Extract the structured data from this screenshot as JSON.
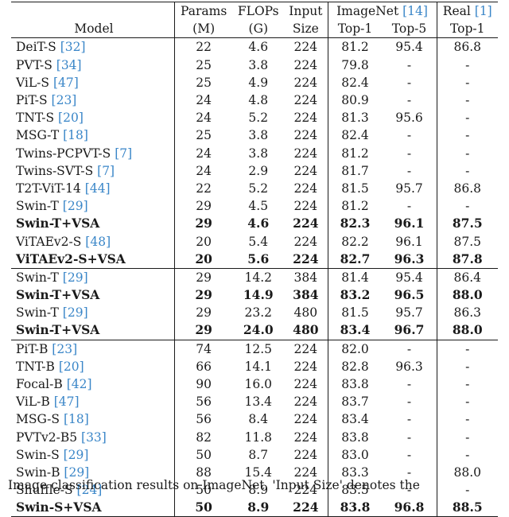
{
  "header": {
    "row1": {
      "model": "",
      "params": "Params",
      "flops": "FLOPs",
      "input": "Input",
      "imagenet_prefix": "ImageNet",
      "imagenet_cite": "[14]",
      "real_prefix": "Real",
      "real_cite": "[1]"
    },
    "row2": {
      "model": "Model",
      "params": "(M)",
      "flops": "(G)",
      "input": "Size",
      "top1": "Top-1",
      "top5": "Top-5",
      "real_top1": "Top-1"
    }
  },
  "groups": [
    {
      "rows": [
        {
          "name": "DeiT-S",
          "cite": "[32]",
          "params": "22",
          "flops": "4.6",
          "size": "224",
          "top1": "81.2",
          "top5": "95.4",
          "real": "86.8",
          "bold": false
        },
        {
          "name": "PVT-S",
          "cite": "[34]",
          "params": "25",
          "flops": "3.8",
          "size": "224",
          "top1": "79.8",
          "top5": "-",
          "real": "-",
          "bold": false
        },
        {
          "name": "ViL-S",
          "cite": "[47]",
          "params": "25",
          "flops": "4.9",
          "size": "224",
          "top1": "82.4",
          "top5": "-",
          "real": "-",
          "bold": false
        },
        {
          "name": "PiT-S",
          "cite": "[23]",
          "params": "24",
          "flops": "4.8",
          "size": "224",
          "top1": "80.9",
          "top5": "-",
          "real": "-",
          "bold": false
        },
        {
          "name": "TNT-S",
          "cite": "[20]",
          "params": "24",
          "flops": "5.2",
          "size": "224",
          "top1": "81.3",
          "top5": "95.6",
          "real": "-",
          "bold": false
        },
        {
          "name": "MSG-T",
          "cite": "[18]",
          "params": "25",
          "flops": "3.8",
          "size": "224",
          "top1": "82.4",
          "top5": "-",
          "real": "-",
          "bold": false
        },
        {
          "name": "Twins-PCPVT-S",
          "cite": "[7]",
          "params": "24",
          "flops": "3.8",
          "size": "224",
          "top1": "81.2",
          "top5": "-",
          "real": "-",
          "bold": false
        },
        {
          "name": "Twins-SVT-S",
          "cite": "[7]",
          "params": "24",
          "flops": "2.9",
          "size": "224",
          "top1": "81.7",
          "top5": "-",
          "real": "-",
          "bold": false
        },
        {
          "name": "T2T-ViT-14",
          "cite": "[44]",
          "params": "22",
          "flops": "5.2",
          "size": "224",
          "top1": "81.5",
          "top5": "95.7",
          "real": "86.8",
          "bold": false
        },
        {
          "name": "Swin-T",
          "cite": "[29]",
          "params": "29",
          "flops": "4.5",
          "size": "224",
          "top1": "81.2",
          "top5": "-",
          "real": "-",
          "bold": false
        },
        {
          "name": "Swin-T+VSA",
          "cite": "",
          "params": "29",
          "flops": "4.6",
          "size": "224",
          "top1": "82.3",
          "top5": "96.1",
          "real": "87.5",
          "bold": true
        },
        {
          "name": "ViTAEv2-S",
          "cite": "[48]",
          "params": "20",
          "flops": "5.4",
          "size": "224",
          "top1": "82.2",
          "top5": "96.1",
          "real": "87.5",
          "bold": false
        },
        {
          "name": "ViTAEv2-S+VSA",
          "cite": "",
          "params": "20",
          "flops": "5.6",
          "size": "224",
          "top1": "82.7",
          "top5": "96.3",
          "real": "87.8",
          "bold": true
        }
      ]
    },
    {
      "rows": [
        {
          "name": "Swin-T",
          "cite": "[29]",
          "params": "29",
          "flops": "14.2",
          "size": "384",
          "top1": "81.4",
          "top5": "95.4",
          "real": "86.4",
          "bold": false
        },
        {
          "name": "Swin-T+VSA",
          "cite": "",
          "params": "29",
          "flops": "14.9",
          "size": "384",
          "top1": "83.2",
          "top5": "96.5",
          "real": "88.0",
          "bold": true
        },
        {
          "name": "Swin-T",
          "cite": "[29]",
          "params": "29",
          "flops": "23.2",
          "size": "480",
          "top1": "81.5",
          "top5": "95.7",
          "real": "86.3",
          "bold": false
        },
        {
          "name": "Swin-T+VSA",
          "cite": "",
          "params": "29",
          "flops": "24.0",
          "size": "480",
          "top1": "83.4",
          "top5": "96.7",
          "real": "88.0",
          "bold": true
        }
      ]
    },
    {
      "rows": [
        {
          "name": "PiT-B",
          "cite": "[23]",
          "params": "74",
          "flops": "12.5",
          "size": "224",
          "top1": "82.0",
          "top5": "-",
          "real": "-",
          "bold": false
        },
        {
          "name": "TNT-B",
          "cite": "[20]",
          "params": "66",
          "flops": "14.1",
          "size": "224",
          "top1": "82.8",
          "top5": "96.3",
          "real": "-",
          "bold": false
        },
        {
          "name": "Focal-B",
          "cite": "[42]",
          "params": "90",
          "flops": "16.0",
          "size": "224",
          "top1": "83.8",
          "top5": "-",
          "real": "-",
          "bold": false
        },
        {
          "name": "ViL-B",
          "cite": "[47]",
          "params": "56",
          "flops": "13.4",
          "size": "224",
          "top1": "83.7",
          "top5": "-",
          "real": "-",
          "bold": false
        },
        {
          "name": "MSG-S",
          "cite": "[18]",
          "params": "56",
          "flops": "8.4",
          "size": "224",
          "top1": "83.4",
          "top5": "-",
          "real": "-",
          "bold": false
        },
        {
          "name": "PVTv2-B5",
          "cite": "[33]",
          "params": "82",
          "flops": "11.8",
          "size": "224",
          "top1": "83.8",
          "top5": "-",
          "real": "-",
          "bold": false
        },
        {
          "name": "Swin-S",
          "cite": "[29]",
          "params": "50",
          "flops": "8.7",
          "size": "224",
          "top1": "83.0",
          "top5": "-",
          "real": "-",
          "bold": false
        },
        {
          "name": "Swin-B",
          "cite": "[29]",
          "params": "88",
          "flops": "15.4",
          "size": "224",
          "top1": "83.3",
          "top5": "-",
          "real": "88.0",
          "bold": false
        },
        {
          "name": "Shuffle-S",
          "cite": "[24]",
          "params": "50",
          "flops": "8.9",
          "size": "224",
          "top1": "83.5",
          "top5": "-",
          "real": "-",
          "bold": false
        },
        {
          "name": "Swin-S+VSA",
          "cite": "",
          "params": "50",
          "flops": "8.9",
          "size": "224",
          "top1": "83.8",
          "top5": "96.8",
          "real": "88.5",
          "bold": true
        }
      ]
    }
  ],
  "caption": "Image classification results on ImageNet. 'Input Size' denotes the"
}
